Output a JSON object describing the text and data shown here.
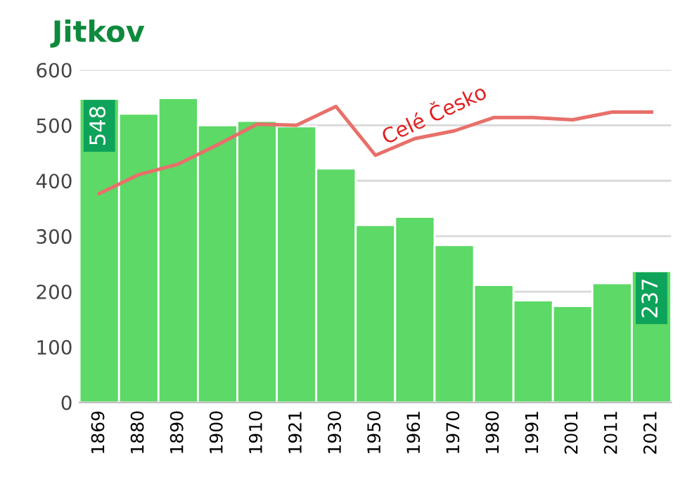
{
  "chart_data": {
    "type": "bar",
    "title": "Jitkov",
    "categories": [
      "1869",
      "1880",
      "1890",
      "1900",
      "1910",
      "1921",
      "1930",
      "1950",
      "1961",
      "1970",
      "1980",
      "1991",
      "2001",
      "2011",
      "2021"
    ],
    "series": [
      {
        "color": "#5cd966",
        "values": [
          548,
          521,
          549,
          500,
          508,
          498,
          422,
          320,
          335,
          284,
          212,
          184,
          174,
          215,
          237
        ],
        "value_labels": [
          "548",
          null,
          null,
          null,
          null,
          null,
          null,
          null,
          null,
          null,
          null,
          null,
          null,
          null,
          "237"
        ]
      },
      {
        "type": "line",
        "name": "Celé Česko",
        "color": "#e8706a",
        "values": [
          377,
          411,
          430,
          465,
          502,
          500,
          534,
          446,
          476,
          490,
          514,
          514,
          510,
          524,
          524
        ]
      }
    ],
    "ylim": [
      0,
      600
    ],
    "yticks": [
      0,
      100,
      200,
      300,
      400,
      500,
      600
    ],
    "grid": "y",
    "legend": false
  }
}
